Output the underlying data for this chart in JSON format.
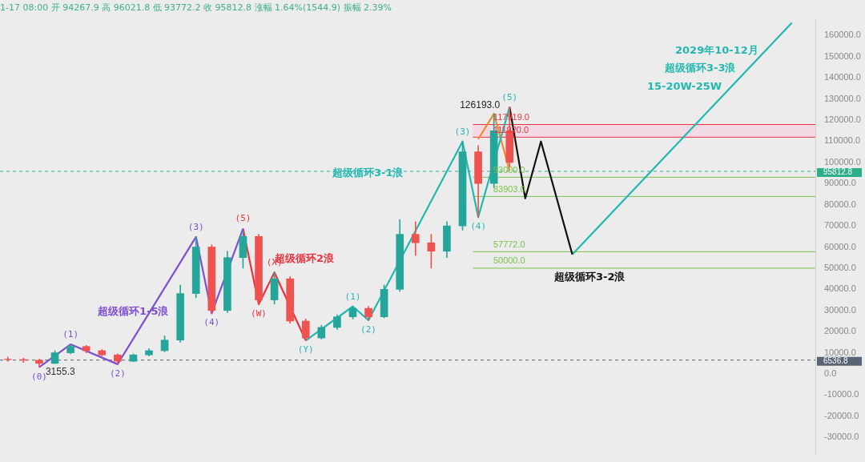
{
  "chart_data": {
    "type": "candlestick",
    "subtitle": "1-17 08:00 开 94267.9 高 96021.8 低 93772.2 收 95812.8 涨幅 1.64%(1544.9) 振幅 2.39%",
    "categories": [
      null,
      null,
      null,
      null,
      null,
      null,
      null,
      null,
      null,
      null,
      null,
      null,
      null,
      null,
      null,
      null,
      null,
      null,
      null,
      null,
      null,
      null,
      null,
      null,
      null,
      null,
      null,
      null,
      null,
      null,
      null,
      null,
      null,
      null,
      null,
      null,
      null,
      null,
      null,
      null,
      null,
      null,
      null,
      null,
      null,
      null,
      null,
      null,
      null,
      null,
      null,
      null
    ],
    "ohlc": [
      [
        7000,
        8000,
        6000,
        6800
      ],
      [
        6800,
        7500,
        5500,
        6500
      ],
      [
        6500,
        7000,
        3155.3,
        5000
      ],
      [
        5000,
        11000,
        4800,
        10000
      ],
      [
        10000,
        14000,
        9500,
        13000
      ],
      [
        13000,
        13500,
        10000,
        11000
      ],
      [
        11000,
        11500,
        8500,
        9000
      ],
      [
        9000,
        9500,
        4600,
        6000
      ],
      [
        6000,
        9500,
        5800,
        9000
      ],
      [
        9000,
        12000,
        8500,
        11000
      ],
      [
        11000,
        18000,
        10500,
        16000
      ],
      [
        16000,
        42000,
        15000,
        38000
      ],
      [
        38000,
        64800,
        36000,
        60000
      ],
      [
        60000,
        61000,
        28600,
        30000
      ],
      [
        30000,
        58000,
        29000,
        55000
      ],
      [
        55000,
        67500,
        50000,
        65000
      ],
      [
        65000,
        66000,
        32900,
        35000
      ],
      [
        35000,
        48000,
        33000,
        45000
      ],
      [
        45000,
        46000,
        24000,
        25000
      ],
      [
        25000,
        26000,
        15800,
        17000
      ],
      [
        17000,
        23000,
        16500,
        22000
      ],
      [
        22000,
        28000,
        21000,
        27000
      ],
      [
        27000,
        31900,
        26000,
        31000
      ],
      [
        31000,
        32000,
        25400,
        27000
      ],
      [
        27000,
        42000,
        26500,
        40000
      ],
      [
        40000,
        73000,
        39000,
        66000
      ],
      [
        66000,
        72000,
        56000,
        62000
      ],
      [
        62000,
        66000,
        50000,
        58000
      ],
      [
        58000,
        72000,
        55000,
        70000
      ],
      [
        70000,
        109900,
        68000,
        105000
      ],
      [
        105000,
        108000,
        74100,
        90000
      ],
      [
        90000,
        123000,
        88000,
        115000
      ],
      [
        115000,
        126193,
        98000,
        100000
      ],
      null,
      null,
      null,
      null,
      null,
      null,
      null,
      null,
      null,
      null,
      null,
      null,
      null,
      null,
      null,
      null,
      null,
      null,
      null
    ],
    "colors": [
      "#ef5350",
      "#ef5350",
      "#ef5350",
      "#26a69a",
      "#26a69a",
      "#ef5350",
      "#ef5350",
      "#ef5350",
      "#26a69a",
      "#26a69a",
      "#26a69a",
      "#26a69a",
      "#26a69a",
      "#ef5350",
      "#26a69a",
      "#26a69a",
      "#ef5350",
      "#26a69a",
      "#ef5350",
      "#ef5350",
      "#26a69a",
      "#26a69a",
      "#26a69a",
      "#ef5350",
      "#26a69a",
      "#26a69a",
      "#ef5350",
      "#ef5350",
      "#26a69a",
      "#26a69a",
      "#ef5350",
      "#26a69a",
      "#ef5350",
      null,
      null,
      null,
      null,
      null,
      null,
      null,
      null,
      null,
      null,
      null,
      null,
      null,
      null,
      null,
      null,
      null,
      null,
      null
    ],
    "series": [
      {
        "type": "line",
        "color": "#7e4fd0",
        "values": [
          null,
          null,
          3155.3,
          null,
          14000,
          null,
          null,
          4600,
          null,
          null,
          null,
          null,
          64800,
          28600,
          null,
          68700,
          null,
          null,
          null,
          null,
          null,
          null,
          null,
          null,
          null,
          null,
          null,
          null,
          null,
          null,
          null,
          null,
          null,
          null,
          null,
          null,
          null,
          null,
          null,
          null,
          null,
          null,
          null,
          null,
          null,
          null,
          null,
          null,
          null,
          null,
          null,
          null
        ]
      },
      {
        "type": "line",
        "color": "#e8343f",
        "values": [
          null,
          null,
          null,
          null,
          null,
          null,
          null,
          null,
          null,
          null,
          null,
          null,
          null,
          null,
          null,
          68700,
          32900,
          48000,
          null,
          15800,
          null,
          null,
          null,
          null,
          null,
          null,
          null,
          null,
          null,
          null,
          null,
          null,
          null,
          null,
          null,
          null,
          null,
          null,
          null,
          null,
          null,
          null,
          null,
          null,
          null,
          null,
          null,
          null,
          null,
          null,
          null,
          null
        ]
      },
      {
        "type": "line",
        "color": "#22b8b0",
        "values": [
          null,
          null,
          null,
          null,
          null,
          null,
          null,
          null,
          null,
          null,
          null,
          null,
          null,
          null,
          null,
          null,
          null,
          null,
          null,
          15800,
          null,
          null,
          31900,
          25400,
          null,
          null,
          null,
          null,
          null,
          109900,
          74100,
          null,
          126193,
          null,
          null,
          null,
          null,
          null,
          null,
          null,
          null,
          null,
          null,
          null,
          null,
          null,
          null,
          null,
          null,
          null,
          null,
          null
        ]
      },
      {
        "type": "line",
        "color": "#f08c2a",
        "values": [
          null,
          null,
          null,
          null,
          null,
          null,
          null,
          null,
          null,
          null,
          null,
          null,
          null,
          null,
          null,
          null,
          null,
          null,
          null,
          null,
          null,
          null,
          null,
          null,
          null,
          null,
          null,
          null,
          null,
          null,
          111000,
          123000,
          96000,
          null,
          null,
          null,
          null,
          null,
          null,
          null,
          null,
          null,
          null,
          null,
          null,
          null,
          null,
          null,
          null,
          null,
          null,
          null
        ]
      },
      {
        "type": "line",
        "color": "#111111",
        "values": [
          null,
          null,
          null,
          null,
          null,
          null,
          null,
          null,
          null,
          null,
          null,
          null,
          null,
          null,
          null,
          null,
          null,
          null,
          null,
          null,
          null,
          null,
          null,
          null,
          null,
          null,
          null,
          null,
          null,
          null,
          null,
          null,
          126193,
          83000,
          109900,
          null,
          56500,
          null,
          null,
          null,
          null,
          null,
          null,
          null,
          null,
          null,
          null,
          null,
          null,
          null,
          null,
          null
        ]
      },
      {
        "type": "line",
        "color": "#22b8b0",
        "values": [
          null,
          null,
          null,
          null,
          null,
          null,
          null,
          null,
          null,
          null,
          null,
          null,
          null,
          null,
          null,
          null,
          null,
          null,
          null,
          null,
          null,
          null,
          null,
          null,
          null,
          null,
          null,
          null,
          null,
          null,
          null,
          null,
          null,
          null,
          null,
          null,
          56500,
          null,
          null,
          null,
          null,
          null,
          null,
          null,
          null,
          null,
          null,
          null,
          null,
          null,
          166000,
          null
        ]
      }
    ],
    "marker": "none",
    "ylim": [
      -38000,
      168000
    ],
    "yticks": [
      {
        "value": 160000,
        "label": "160000.0"
      },
      {
        "value": 150000,
        "label": "150000.0"
      },
      {
        "value": 140000,
        "label": "140000.0"
      },
      {
        "value": 130000,
        "label": "130000.0"
      },
      {
        "value": 120000,
        "label": "120000.0"
      },
      {
        "value": 110000,
        "label": "110000.0"
      },
      {
        "value": 100000,
        "label": "100000.0"
      },
      {
        "value": 90000,
        "label": "90000.0"
      },
      {
        "value": 80000,
        "label": "80000.0"
      },
      {
        "value": 70000,
        "label": "70000.0"
      },
      {
        "value": 60000,
        "label": "60000.0"
      },
      {
        "value": 50000,
        "label": "50000.0"
      },
      {
        "value": 40000,
        "label": "40000.0"
      },
      {
        "value": 30000,
        "label": "30000.0"
      },
      {
        "value": 20000,
        "label": "20000.0"
      },
      {
        "value": 10000,
        "label": "10000.0"
      },
      {
        "value": 0,
        "label": "0.0"
      },
      {
        "value": -10000,
        "label": "-10000.0"
      },
      {
        "value": -20000,
        "label": "-20000.0"
      },
      {
        "value": -30000,
        "label": "-30000.0"
      }
    ],
    "bands": [
      {
        "axis": "y",
        "from": 111920,
        "to": 117919,
        "color": "#f7c6dc"
      }
    ],
    "ref_lines": [
      {
        "axis": "y",
        "value": 117919,
        "label": "117919.0",
        "color": "#e8343f"
      },
      {
        "axis": "y",
        "value": 111920,
        "label": "111920.0",
        "color": "#e8343f"
      },
      {
        "axis": "y",
        "value": 93000,
        "label": "93000.0",
        "color": "#7cc04a"
      },
      {
        "axis": "y",
        "value": 83903,
        "label": "83903.0",
        "color": "#7cc04a"
      },
      {
        "axis": "y",
        "value": 57772,
        "label": "57772.0",
        "color": "#7cc04a"
      },
      {
        "axis": "y",
        "value": 50000,
        "label": "50000.0",
        "color": "#7cc04a"
      },
      {
        "axis": "y",
        "value": 95812.8,
        "label": "95812.8",
        "color": "#2fae8c",
        "line_style": "dashed"
      },
      {
        "axis": "y",
        "value": 6536.8,
        "label": "6536.8",
        "color": "#5a6474",
        "line_style": "dashed"
      }
    ],
    "annotations": [
      "3155.3",
      "126193.0",
      "超级循环1-5浪",
      "超级循环2浪",
      "超级循环3-1浪",
      "超级循环3-2浪",
      "2029年10-12月",
      "超级循环3-3浪",
      "15-20W-25W",
      "(0)",
      "(1)",
      "(2)",
      "(3)",
      "(4)",
      "(5)",
      "(W)",
      "(X)",
      "(Y)",
      "(1)",
      "(2)",
      "(3)",
      "(4)",
      "(5)"
    ]
  }
}
